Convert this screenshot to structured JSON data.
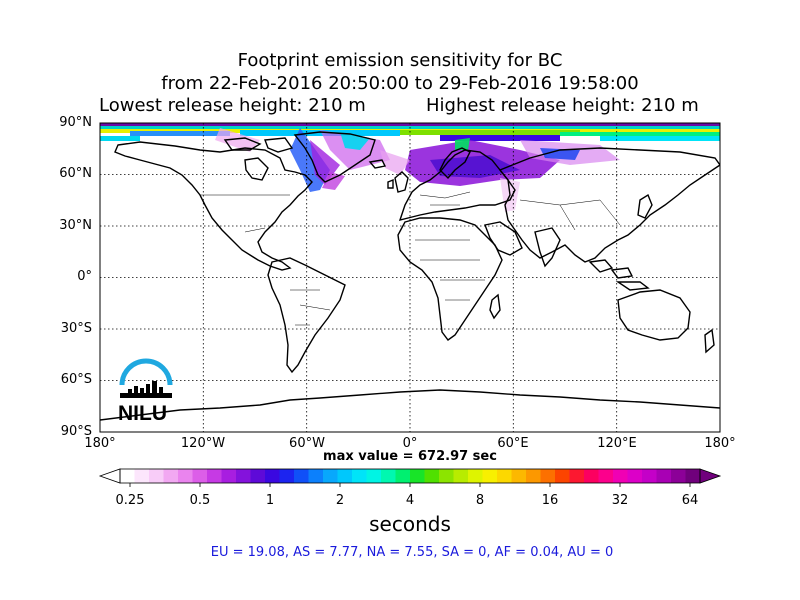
{
  "title": {
    "line1": "Footprint emission sensitivity for BC",
    "line2": "from 22-Feb-2016 20:50:00 to 29-Feb-2016 19:58:00",
    "lowest_release": "Lowest release height: 210 m",
    "highest_release": "Highest release height: 210 m"
  },
  "map": {
    "lat_labels": [
      "90°N",
      "60°N",
      "30°N",
      "0°",
      "30°S",
      "60°S",
      "90°S"
    ],
    "lon_labels": [
      "180°",
      "120°W",
      "60°W",
      "0°",
      "60°E",
      "120°E",
      "180°"
    ],
    "grid": "dotted",
    "max_value": "max value = 672.97 sec",
    "logo_text": "NILU",
    "colors": {
      "logo_arc": "#1fa8e0",
      "coast": "#000000"
    }
  },
  "colorbar": {
    "ticks": [
      "0.25",
      "0.5",
      "1",
      "2",
      "4",
      "8",
      "16",
      "32",
      "64"
    ],
    "units": "seconds",
    "scale": "log2",
    "colors": [
      "#ffffff",
      "#fce6fc",
      "#f8ccf8",
      "#f2a8f2",
      "#ea84ee",
      "#dc5ee8",
      "#c63ae4",
      "#a81ee0",
      "#8412dc",
      "#5e0ad8",
      "#3a08e0",
      "#1c24f0",
      "#1050f8",
      "#0c80fc",
      "#08a8fc",
      "#00c8fc",
      "#00e4f8",
      "#00f4e4",
      "#00f8b0",
      "#00f070",
      "#18e428",
      "#50e000",
      "#8ce400",
      "#b8ec00",
      "#def400",
      "#f8f000",
      "#fcd800",
      "#fcb800",
      "#fc9800",
      "#fc7000",
      "#fc4400",
      "#fc1830",
      "#fc0060",
      "#fc008c",
      "#f000b4",
      "#dc00c8",
      "#c400c8",
      "#a800b4",
      "#8c0098",
      "#70007c"
    ]
  },
  "regions_text": "EU = 19.08,  AS = 7.77,  NA = 7.55,  SA = 0,  AF = 0.04,  AU = 0"
}
